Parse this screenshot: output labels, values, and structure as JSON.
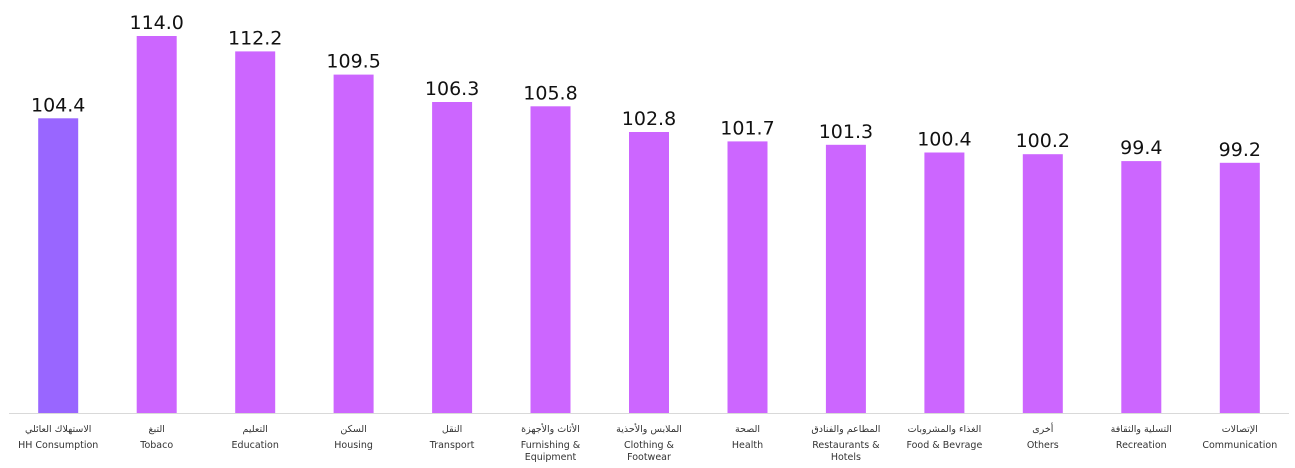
{
  "chart_data": {
    "type": "bar",
    "title": "",
    "xlabel": "",
    "ylabel": "",
    "ylim": [
      70,
      115
    ],
    "grid": false,
    "legend": "none",
    "categories": [
      {
        "ar": "الاستهلاك العائلي",
        "en": [
          "HH  Consumption"
        ]
      },
      {
        "ar": "التبغ",
        "en": [
          "Tobaco"
        ]
      },
      {
        "ar": "التعليم",
        "en": [
          "Education"
        ]
      },
      {
        "ar": "السكن",
        "en": [
          "Housing"
        ]
      },
      {
        "ar": "النقل",
        "en": [
          "Transport"
        ]
      },
      {
        "ar": "الأثاث والأجهزة",
        "en": [
          "Furnishing &",
          "Equipment"
        ]
      },
      {
        "ar": "الملابس والأحذية",
        "en": [
          "Clothing &",
          "Footwear"
        ]
      },
      {
        "ar": "الصحة",
        "en": [
          "Health"
        ]
      },
      {
        "ar": "المطاعم والفنادق",
        "en": [
          "Restaurants &",
          "Hotels"
        ]
      },
      {
        "ar": "الغذاء والمشروبات",
        "en": [
          "Food & Bevrage"
        ]
      },
      {
        "ar": "أخرى",
        "en": [
          "Others"
        ]
      },
      {
        "ar": "التسلية والثقافة",
        "en": [
          "Recreation"
        ]
      },
      {
        "ar": "الإتصالات",
        "en": [
          "Communication"
        ]
      }
    ],
    "values": [
      104.4,
      114.0,
      112.2,
      109.5,
      106.3,
      105.8,
      102.8,
      101.7,
      101.3,
      100.4,
      100.2,
      99.4,
      99.2
    ],
    "value_labels": [
      "104.4",
      "114.0",
      "112.2",
      "109.5",
      "106.3",
      "105.8",
      "102.8",
      "101.7",
      "101.3",
      "100.4",
      "100.2",
      "99.4",
      "99.2"
    ],
    "colors": {
      "highlight": "#9966ff",
      "default": "#cc66ff",
      "axis": "#d9d9d9"
    },
    "highlight_index": 0
  }
}
